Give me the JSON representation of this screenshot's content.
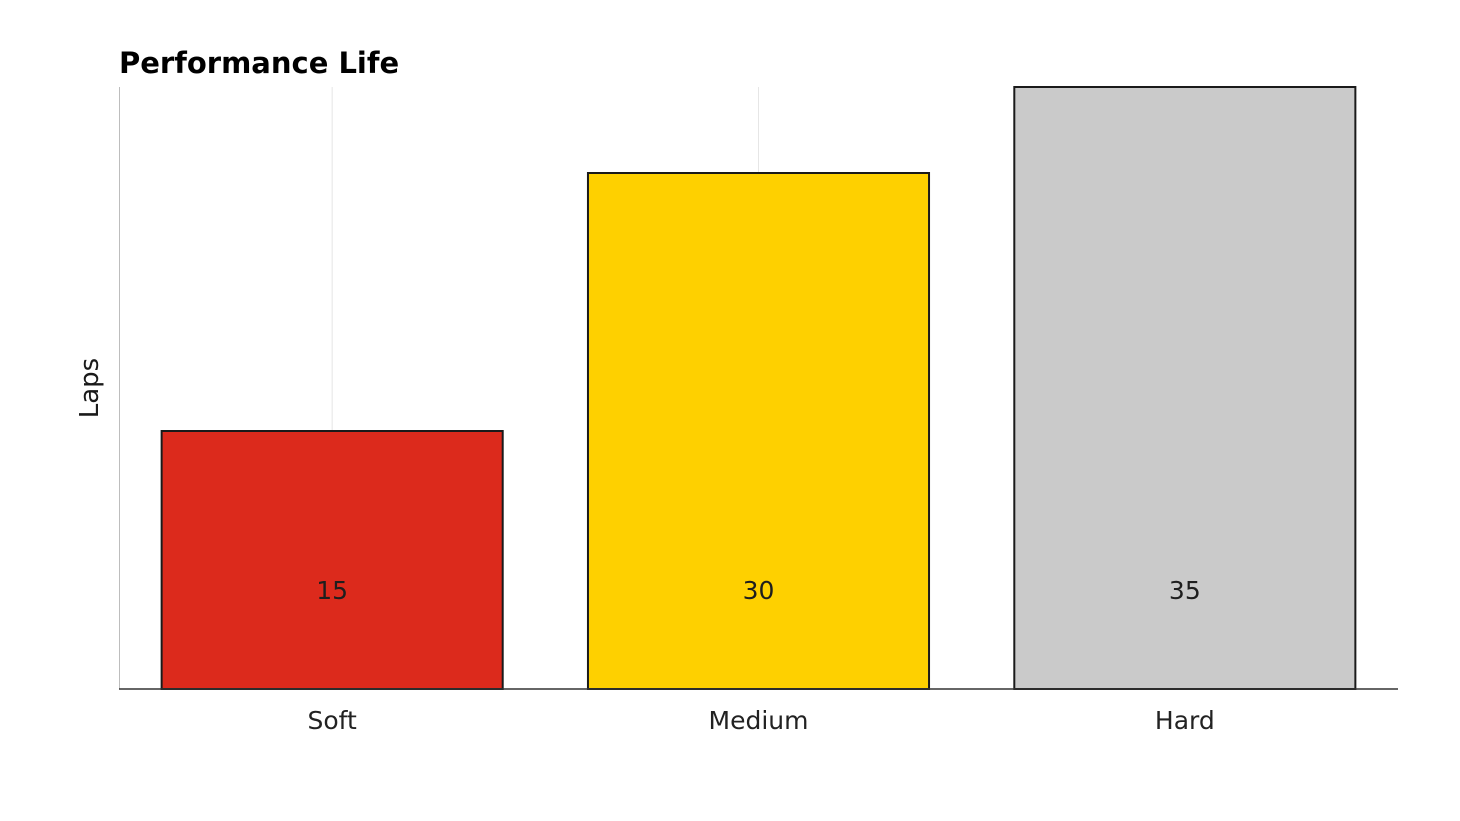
{
  "chart_data": {
    "type": "bar",
    "title": "Performance Life",
    "xlabel": "",
    "ylabel": "Laps",
    "categories": [
      "Soft",
      "Medium",
      "Hard"
    ],
    "values": [
      15,
      30,
      35
    ],
    "value_labels": [
      "15",
      "30",
      "35"
    ],
    "bar_colors": [
      "#dc2a1c",
      "#fed000",
      "#cacaca"
    ],
    "bar_outline_color": "#1a1a1a",
    "ylim": [
      0,
      35
    ],
    "grid": false,
    "legend": "none"
  }
}
